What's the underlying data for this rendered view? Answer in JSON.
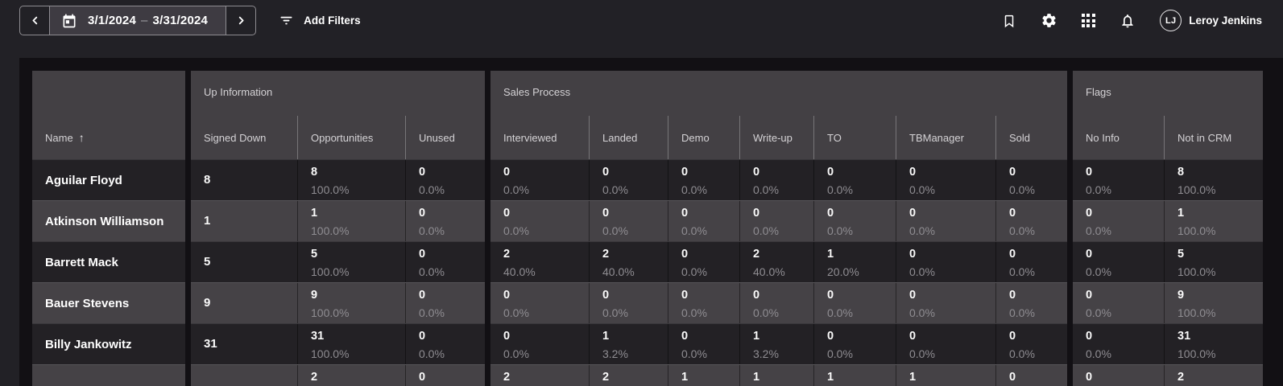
{
  "topbar": {
    "date_range": {
      "start": "3/1/2024",
      "separator": "–",
      "end": "3/31/2024"
    },
    "add_filters_label": "Add Filters",
    "icons": [
      "bookmark-icon",
      "settings-gear-icon",
      "apps-grid-icon",
      "notifications-bell-icon"
    ],
    "user": {
      "initials": "LJ",
      "name": "Leroy Jenkins"
    }
  },
  "table": {
    "name_header": "Name",
    "sort_indicator": "↑",
    "groups": [
      {
        "label": "Up Information",
        "columns": [
          "Signed Down",
          "Opportunities",
          "Unused"
        ]
      },
      {
        "label": "Sales Process",
        "columns": [
          "Interviewed",
          "Landed",
          "Demo",
          "Write-up",
          "TO",
          "TBManager",
          "Sold"
        ]
      },
      {
        "label": "Flags",
        "columns": [
          "No Info",
          "Not in CRM"
        ]
      }
    ],
    "rows": [
      {
        "name": "Aguilar Floyd",
        "cells": [
          {
            "v": "8",
            "pct": ""
          },
          {
            "v": "8",
            "pct": "100.0%"
          },
          {
            "v": "0",
            "pct": "0.0%"
          },
          {
            "v": "0",
            "pct": "0.0%"
          },
          {
            "v": "0",
            "pct": "0.0%"
          },
          {
            "v": "0",
            "pct": "0.0%"
          },
          {
            "v": "0",
            "pct": "0.0%"
          },
          {
            "v": "0",
            "pct": "0.0%"
          },
          {
            "v": "0",
            "pct": "0.0%"
          },
          {
            "v": "0",
            "pct": "0.0%"
          },
          {
            "v": "0",
            "pct": "0.0%"
          },
          {
            "v": "8",
            "pct": "100.0%"
          }
        ]
      },
      {
        "name": "Atkinson Williamson",
        "cells": [
          {
            "v": "1",
            "pct": ""
          },
          {
            "v": "1",
            "pct": "100.0%"
          },
          {
            "v": "0",
            "pct": "0.0%"
          },
          {
            "v": "0",
            "pct": "0.0%"
          },
          {
            "v": "0",
            "pct": "0.0%"
          },
          {
            "v": "0",
            "pct": "0.0%"
          },
          {
            "v": "0",
            "pct": "0.0%"
          },
          {
            "v": "0",
            "pct": "0.0%"
          },
          {
            "v": "0",
            "pct": "0.0%"
          },
          {
            "v": "0",
            "pct": "0.0%"
          },
          {
            "v": "0",
            "pct": "0.0%"
          },
          {
            "v": "1",
            "pct": "100.0%"
          }
        ]
      },
      {
        "name": "Barrett Mack",
        "cells": [
          {
            "v": "5",
            "pct": ""
          },
          {
            "v": "5",
            "pct": "100.0%"
          },
          {
            "v": "0",
            "pct": "0.0%"
          },
          {
            "v": "2",
            "pct": "40.0%"
          },
          {
            "v": "2",
            "pct": "40.0%"
          },
          {
            "v": "0",
            "pct": "0.0%"
          },
          {
            "v": "2",
            "pct": "40.0%"
          },
          {
            "v": "1",
            "pct": "20.0%"
          },
          {
            "v": "0",
            "pct": "0.0%"
          },
          {
            "v": "0",
            "pct": "0.0%"
          },
          {
            "v": "0",
            "pct": "0.0%"
          },
          {
            "v": "5",
            "pct": "100.0%"
          }
        ]
      },
      {
        "name": "Bauer Stevens",
        "cells": [
          {
            "v": "9",
            "pct": ""
          },
          {
            "v": "9",
            "pct": "100.0%"
          },
          {
            "v": "0",
            "pct": "0.0%"
          },
          {
            "v": "0",
            "pct": "0.0%"
          },
          {
            "v": "0",
            "pct": "0.0%"
          },
          {
            "v": "0",
            "pct": "0.0%"
          },
          {
            "v": "0",
            "pct": "0.0%"
          },
          {
            "v": "0",
            "pct": "0.0%"
          },
          {
            "v": "0",
            "pct": "0.0%"
          },
          {
            "v": "0",
            "pct": "0.0%"
          },
          {
            "v": "0",
            "pct": "0.0%"
          },
          {
            "v": "9",
            "pct": "100.0%"
          }
        ]
      },
      {
        "name": "Billy Jankowitz",
        "cells": [
          {
            "v": "31",
            "pct": ""
          },
          {
            "v": "31",
            "pct": "100.0%"
          },
          {
            "v": "0",
            "pct": "0.0%"
          },
          {
            "v": "0",
            "pct": "0.0%"
          },
          {
            "v": "1",
            "pct": "3.2%"
          },
          {
            "v": "0",
            "pct": "0.0%"
          },
          {
            "v": "1",
            "pct": "3.2%"
          },
          {
            "v": "0",
            "pct": "0.0%"
          },
          {
            "v": "0",
            "pct": "0.0%"
          },
          {
            "v": "0",
            "pct": "0.0%"
          },
          {
            "v": "0",
            "pct": "0.0%"
          },
          {
            "v": "31",
            "pct": "100.0%"
          }
        ]
      },
      {
        "name": "",
        "cells": [
          {
            "v": "",
            "pct": ""
          },
          {
            "v": "2",
            "pct": ""
          },
          {
            "v": "0",
            "pct": ""
          },
          {
            "v": "2",
            "pct": ""
          },
          {
            "v": "2",
            "pct": ""
          },
          {
            "v": "1",
            "pct": ""
          },
          {
            "v": "1",
            "pct": ""
          },
          {
            "v": "1",
            "pct": ""
          },
          {
            "v": "1",
            "pct": ""
          },
          {
            "v": "0",
            "pct": ""
          },
          {
            "v": "0",
            "pct": ""
          },
          {
            "v": "2",
            "pct": ""
          }
        ]
      }
    ]
  },
  "colors": {
    "topbar_bg": "#222126",
    "content_bg": "#121014",
    "header_bg": "#434044",
    "row_dark": "#232125",
    "row_light": "#454246",
    "text_primary": "#fafafa",
    "text_secondary": "#8f8d92"
  }
}
